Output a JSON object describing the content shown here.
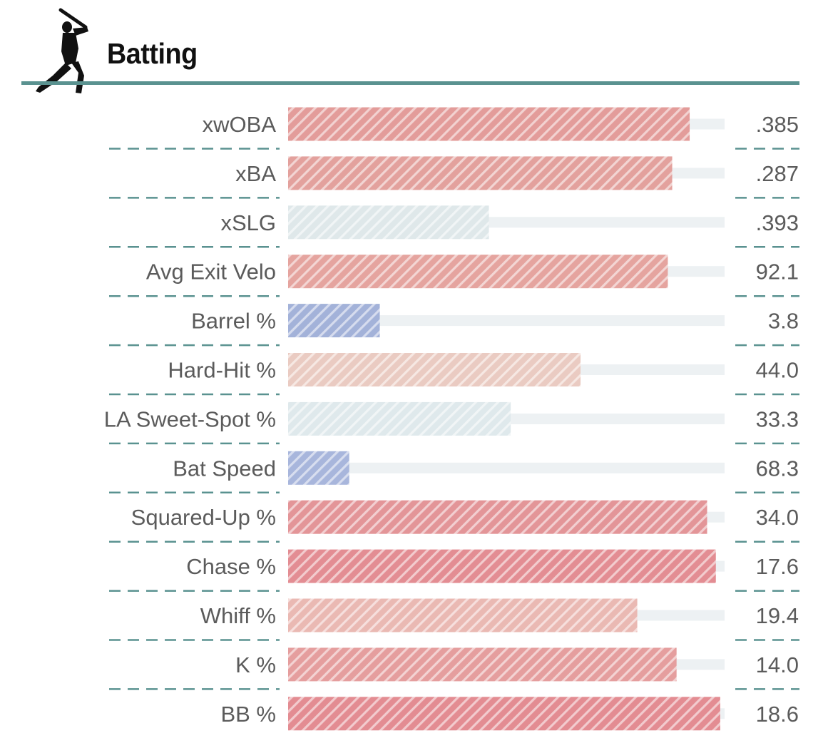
{
  "header": {
    "title": "Batting",
    "icon": "batter-silhouette-icon"
  },
  "colors": {
    "rule": "#5a9290",
    "track": "#edf1f3",
    "text": "#5b5b5b"
  },
  "chart_data": {
    "type": "bar",
    "title": "Batting",
    "orientation": "horizontal",
    "value_axis": "percentile",
    "xlim": [
      0,
      100
    ],
    "metrics": [
      {
        "label": "xwOBA",
        "display": ".385",
        "percentile": 92,
        "color": "#e39c9a"
      },
      {
        "label": "xBA",
        "display": ".287",
        "percentile": 88,
        "color": "#e3a19d"
      },
      {
        "label": "xSLG",
        "display": ".393",
        "percentile": 46,
        "color": "#dfe8ea"
      },
      {
        "label": "Avg Exit Velo",
        "display": "92.1",
        "percentile": 87,
        "color": "#e5a49f"
      },
      {
        "label": "Barrel %",
        "display": "3.8",
        "percentile": 21,
        "color": "#a3b2d9"
      },
      {
        "label": "Hard-Hit %",
        "display": "44.0",
        "percentile": 67,
        "color": "#eacbc2"
      },
      {
        "label": "LA Sweet-Spot %",
        "display": "33.3",
        "percentile": 51,
        "color": "#dfe9ec"
      },
      {
        "label": "Bat Speed",
        "display": "68.3",
        "percentile": 14,
        "color": "#a8b6dc"
      },
      {
        "label": "Squared-Up %",
        "display": "34.0",
        "percentile": 96,
        "color": "#e39598"
      },
      {
        "label": "Chase %",
        "display": "17.6",
        "percentile": 98,
        "color": "#e38d93"
      },
      {
        "label": "Whiff %",
        "display": "19.4",
        "percentile": 80,
        "color": "#eab9b3"
      },
      {
        "label": "K %",
        "display": "14.0",
        "percentile": 89,
        "color": "#e59e9e"
      },
      {
        "label": "BB %",
        "display": "18.6",
        "percentile": 99,
        "color": "#e38c92"
      }
    ]
  }
}
